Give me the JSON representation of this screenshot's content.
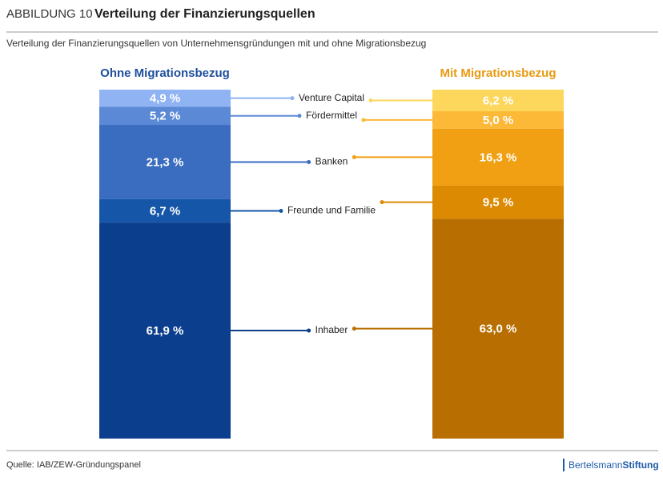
{
  "header": {
    "figure": "ABBILDUNG 10",
    "title": "Verteilung der Finanzierungsquellen"
  },
  "chart_data": {
    "type": "bar",
    "stacked": true,
    "subtitle": "Verteilung der Finanzierungsquellen von Unternehmensgründungen mit und ohne Migrationsbezug",
    "categories": [
      "Ohne Migrationsbezug",
      "Mit Migrationsbezug"
    ],
    "category_colors": [
      "#1e4f9e",
      "#e89a12"
    ],
    "ylim": [
      0,
      100
    ],
    "series": [
      {
        "name": "Venture Capital",
        "colors": [
          "#8fb3f3",
          "#fdd65c"
        ],
        "values": [
          4.9,
          6.2
        ],
        "value_labels": [
          "4,9 %",
          "6,2 %"
        ]
      },
      {
        "name": "Fördermittel",
        "colors": [
          "#5b89d6",
          "#fbb937"
        ],
        "values": [
          5.2,
          5.0
        ],
        "value_labels": [
          "5,2 %",
          "5,0 %"
        ]
      },
      {
        "name": "Banken",
        "colors": [
          "#3a6cc0",
          "#f0a012"
        ],
        "values": [
          21.3,
          16.3
        ],
        "value_labels": [
          "21,3 %",
          "16,3 %"
        ]
      },
      {
        "name": "Freunde und Familie",
        "colors": [
          "#1556a8",
          "#dc8a02"
        ],
        "values": [
          6.7,
          9.5
        ],
        "value_labels": [
          "6,7 %",
          "9,5 %"
        ]
      },
      {
        "name": "Inhaber",
        "colors": [
          "#0b3e8d",
          "#b86e00"
        ],
        "values": [
          61.9,
          63.0
        ],
        "value_labels": [
          "61,9 %",
          "63,0 %"
        ]
      }
    ]
  },
  "footer": {
    "source": "Quelle: IAB/ZEW-Gründungspanel",
    "logo_light": "Bertelsmann",
    "logo_bold": "Stiftung"
  }
}
